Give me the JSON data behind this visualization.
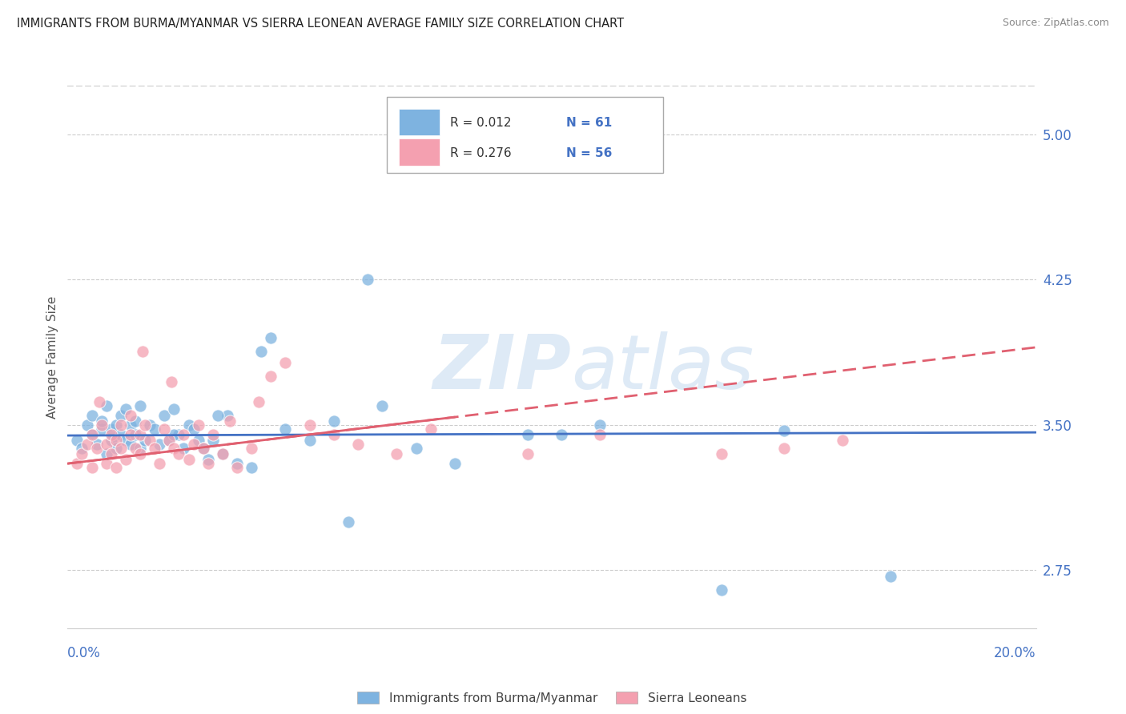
{
  "title": "IMMIGRANTS FROM BURMA/MYANMAR VS SIERRA LEONEAN AVERAGE FAMILY SIZE CORRELATION CHART",
  "source": "Source: ZipAtlas.com",
  "ylabel": "Average Family Size",
  "y_ticks": [
    2.75,
    3.5,
    4.25,
    5.0
  ],
  "x_range": [
    0.0,
    20.0
  ],
  "y_range": [
    2.45,
    5.25
  ],
  "color_blue": "#7EB3E0",
  "color_pink": "#F4A0B0",
  "color_blue_line": "#4472C4",
  "color_pink_line": "#E06070",
  "color_axis": "#4472C4",
  "watermark_color": "#D8E8F0",
  "grid_color": "#CCCCCC",
  "border_color": "#CCCCCC",
  "legend_r1": "R = 0.012",
  "legend_n1": "N = 61",
  "legend_r2": "R = 0.276",
  "legend_n2": "N = 56",
  "blue_x": [
    0.2,
    0.3,
    0.4,
    0.5,
    0.5,
    0.6,
    0.7,
    0.7,
    0.8,
    0.8,
    0.9,
    0.9,
    1.0,
    1.0,
    1.1,
    1.1,
    1.2,
    1.2,
    1.3,
    1.3,
    1.4,
    1.4,
    1.5,
    1.5,
    1.6,
    1.7,
    1.8,
    1.9,
    2.0,
    2.1,
    2.2,
    2.3,
    2.4,
    2.5,
    2.6,
    2.7,
    2.8,
    2.9,
    3.0,
    3.2,
    3.5,
    3.8,
    4.2,
    4.5,
    5.0,
    5.5,
    6.2,
    6.5,
    7.2,
    8.0,
    9.5,
    10.2,
    11.0,
    13.5,
    14.8,
    17.0,
    5.8,
    4.0,
    3.3,
    3.1,
    2.2
  ],
  "blue_y": [
    3.42,
    3.38,
    3.5,
    3.45,
    3.55,
    3.4,
    3.48,
    3.52,
    3.35,
    3.6,
    3.42,
    3.48,
    3.5,
    3.38,
    3.45,
    3.55,
    3.42,
    3.58,
    3.4,
    3.5,
    3.45,
    3.52,
    3.38,
    3.6,
    3.42,
    3.5,
    3.48,
    3.4,
    3.55,
    3.42,
    3.58,
    3.45,
    3.38,
    3.5,
    3.48,
    3.42,
    3.38,
    3.32,
    3.42,
    3.35,
    3.3,
    3.28,
    3.95,
    3.48,
    3.42,
    3.52,
    4.25,
    3.6,
    3.38,
    3.3,
    3.45,
    3.45,
    3.5,
    2.65,
    3.47,
    2.72,
    3.0,
    3.88,
    3.55,
    3.55,
    3.45
  ],
  "pink_x": [
    0.2,
    0.3,
    0.4,
    0.5,
    0.5,
    0.6,
    0.7,
    0.8,
    0.8,
    0.9,
    0.9,
    1.0,
    1.0,
    1.1,
    1.1,
    1.2,
    1.3,
    1.3,
    1.4,
    1.5,
    1.5,
    1.6,
    1.7,
    1.8,
    1.9,
    2.0,
    2.1,
    2.2,
    2.3,
    2.4,
    2.5,
    2.6,
    2.7,
    2.8,
    2.9,
    3.0,
    3.2,
    3.5,
    3.8,
    4.2,
    4.5,
    5.0,
    5.5,
    6.0,
    6.8,
    7.5,
    9.5,
    11.0,
    13.5,
    14.8,
    16.0,
    2.15,
    1.55,
    0.65,
    3.35,
    3.95
  ],
  "pink_y": [
    3.3,
    3.35,
    3.4,
    3.28,
    3.45,
    3.38,
    3.5,
    3.3,
    3.4,
    3.35,
    3.45,
    3.28,
    3.42,
    3.38,
    3.5,
    3.32,
    3.45,
    3.55,
    3.38,
    3.45,
    3.35,
    3.5,
    3.42,
    3.38,
    3.3,
    3.48,
    3.42,
    3.38,
    3.35,
    3.45,
    3.32,
    3.4,
    3.5,
    3.38,
    3.3,
    3.45,
    3.35,
    3.28,
    3.38,
    3.75,
    3.82,
    3.5,
    3.45,
    3.4,
    3.35,
    3.48,
    3.35,
    3.45,
    3.35,
    3.38,
    3.42,
    3.72,
    3.88,
    3.62,
    3.52,
    3.62
  ]
}
